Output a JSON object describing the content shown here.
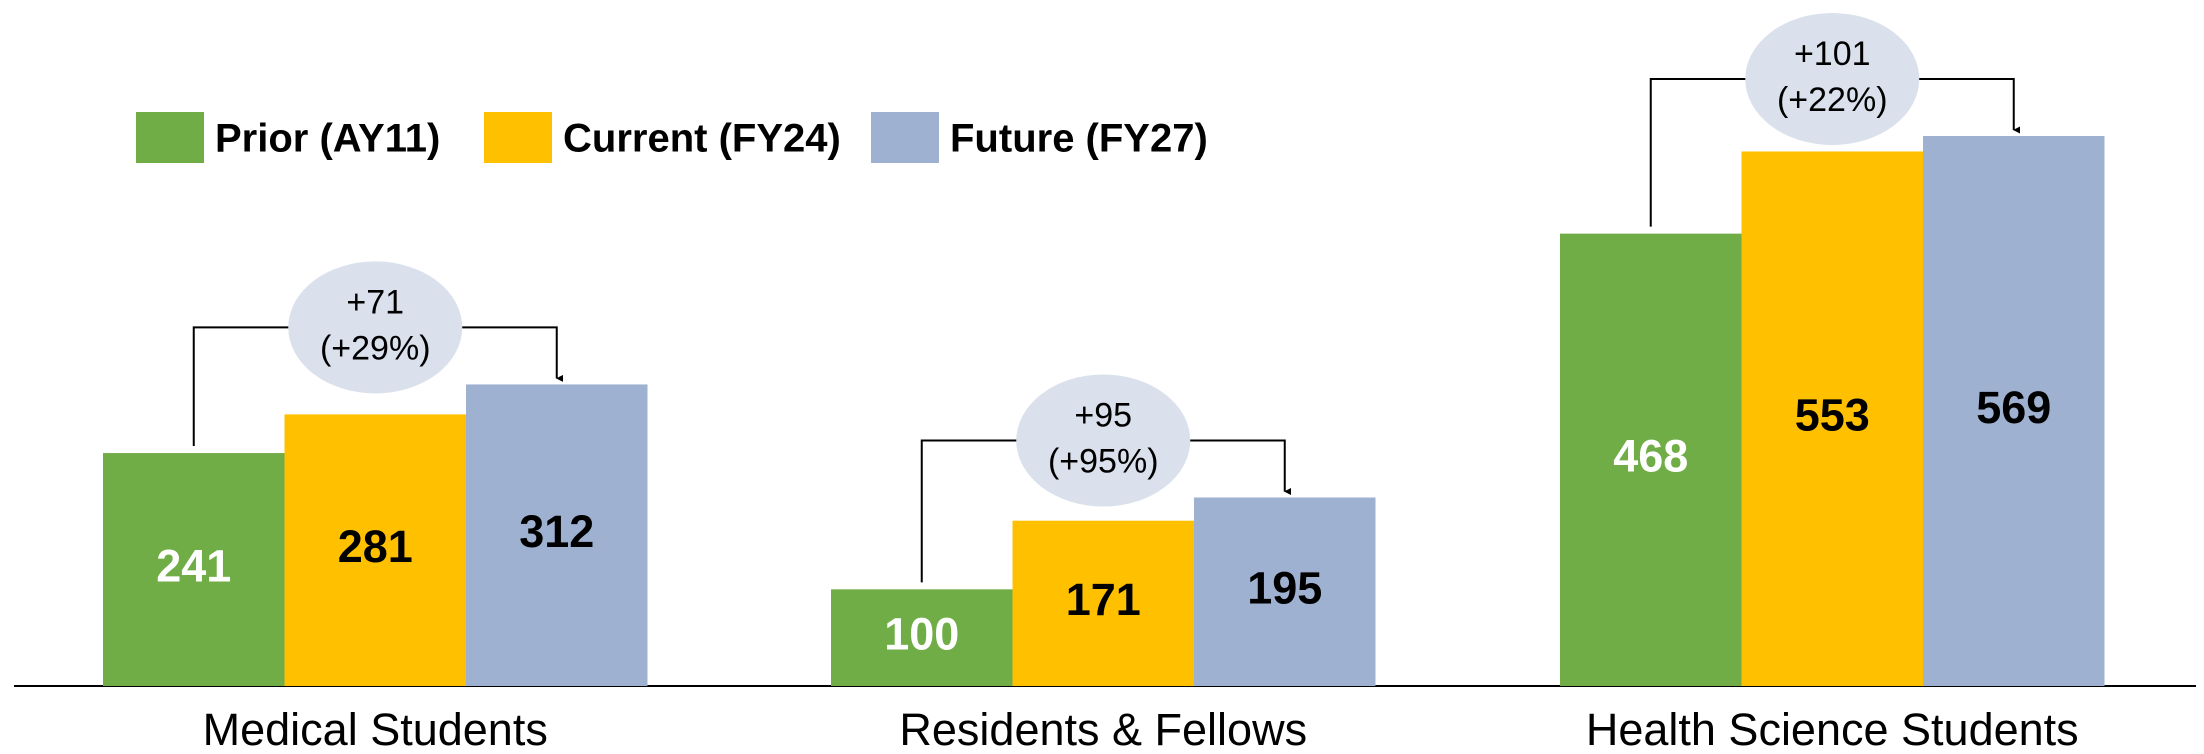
{
  "chart_data": {
    "type": "bar",
    "categories": [
      "Medical Students",
      "Residents & Fellows",
      "Health Science Students"
    ],
    "series": [
      {
        "name": "Prior (AY11)",
        "color": "#70ad47",
        "label_color": "#ffffff",
        "values": [
          241,
          100,
          468
        ]
      },
      {
        "name": "Current (FY24)",
        "color": "#ffc000",
        "label_color": "#000000",
        "values": [
          281,
          171,
          553
        ]
      },
      {
        "name": "Future (FY27)",
        "color": "#9fb1d1",
        "label_color": "#000000",
        "values": [
          312,
          195,
          569
        ]
      }
    ],
    "annotations": [
      {
        "lines": [
          "+71",
          "(+29%)"
        ]
      },
      {
        "lines": [
          "+95",
          "(+95%)"
        ]
      },
      {
        "lines": [
          "+101",
          "(+22%)"
        ]
      }
    ],
    "legend": "top-left"
  }
}
